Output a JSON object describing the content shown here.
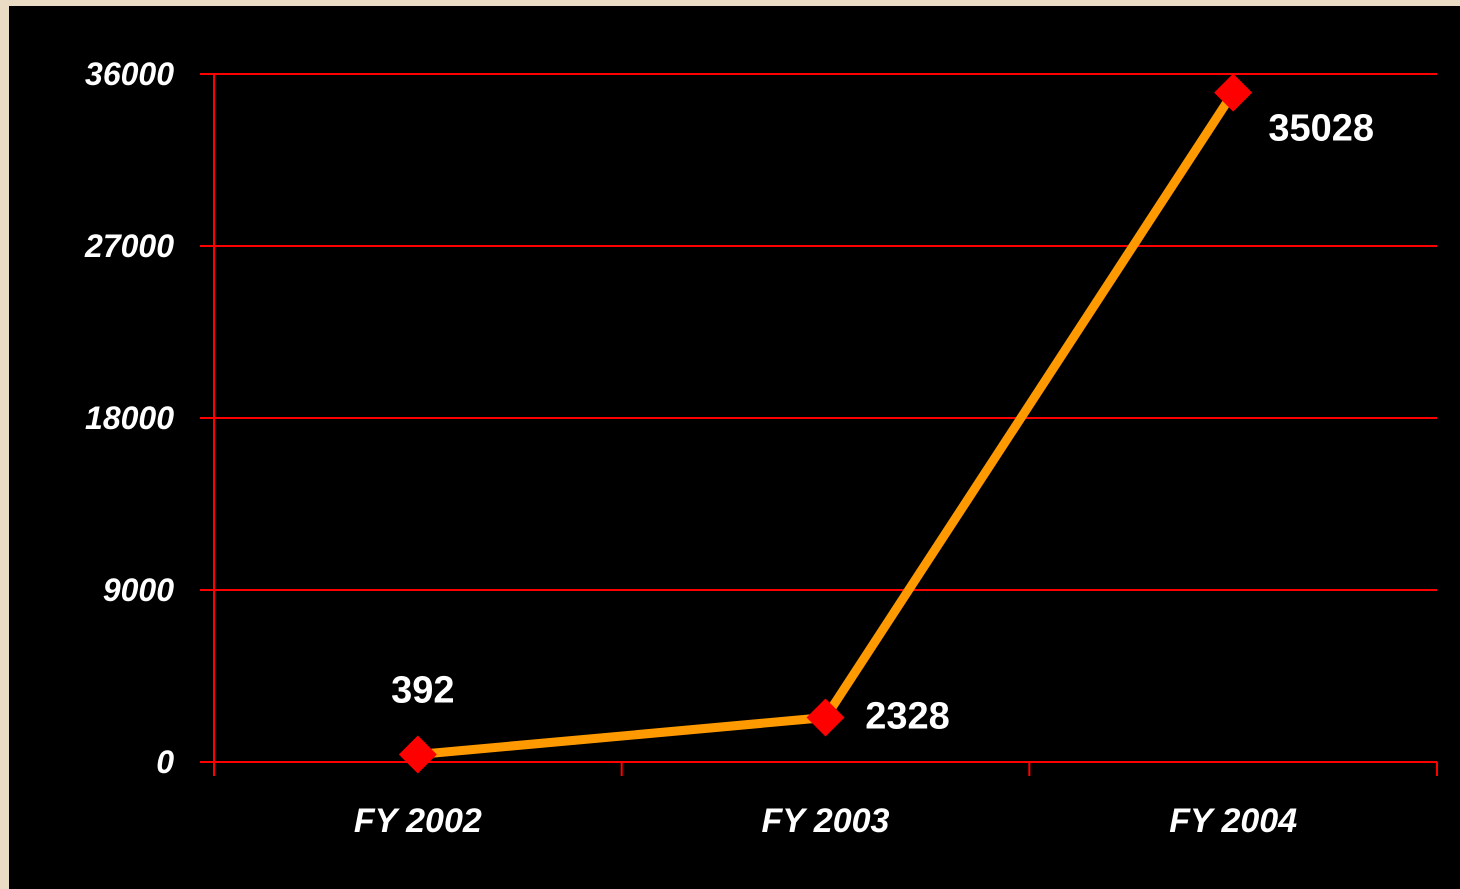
{
  "chart_data": {
    "type": "line",
    "categories": [
      "FY 2002",
      "FY 2003",
      "FY 2004"
    ],
    "series": [
      {
        "values": [
          392,
          2328,
          35028
        ]
      }
    ],
    "data_labels": [
      "392",
      "2328",
      "35028"
    ],
    "yticks": [
      0,
      9000,
      18000,
      27000,
      36000
    ],
    "ytick_labels": [
      "0",
      "9000",
      "18000",
      "27000",
      "36000"
    ],
    "ylim": [
      0,
      36000
    ],
    "title": "",
    "xlabel": "",
    "ylabel": "",
    "grid": true,
    "legend": "none"
  },
  "colors": {
    "background": "#000000",
    "page_background": "#eadcc4",
    "gridline": "#ff0000",
    "axis": "#ff0000",
    "line": "#ff9900",
    "marker": "#ff0000",
    "text": "#ffffff"
  }
}
